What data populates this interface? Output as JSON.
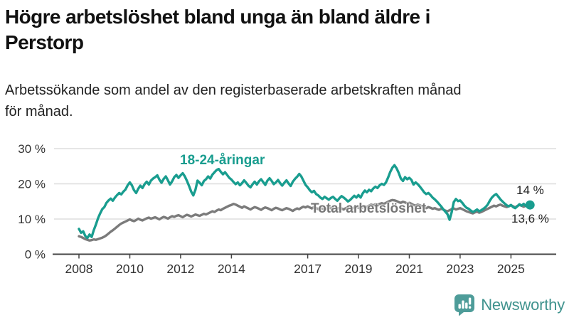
{
  "title": "Högre arbetslöshet bland unga än bland äldre i Perstorp",
  "title_lines": [
    "Högre arbetslöshet bland unga än bland äldre i",
    "Perstorp"
  ],
  "subtitle": "Arbetssökande som andel av den registerbaserade arbetskraften månad för månad.",
  "subtitle_lines": [
    "Arbetssökande som andel av den registerbaserade arbetskraften månad",
    "för månad."
  ],
  "branding": {
    "logo_text": "Newsworthy",
    "logo_color": "#4e9c99",
    "logo_text_color": "#40938e"
  },
  "colors": {
    "young_line": "#199d8f",
    "total_line": "#7b7b7b",
    "grid": "#dedede",
    "axis": "#444444",
    "tick_text": "#333333",
    "background": "#ffffff"
  },
  "chart_data": {
    "type": "line",
    "unit": "%",
    "x_start_year": 2008,
    "x_end_label_note": "monthly data Jan 2008 - Oct 2025",
    "ylim": [
      0,
      32
    ],
    "grid": "horizontal",
    "y_ticks": [
      {
        "value": 0,
        "label": "0 %"
      },
      {
        "value": 10,
        "label": "10 %"
      },
      {
        "value": 20,
        "label": "20 %"
      },
      {
        "value": 30,
        "label": "30 %"
      }
    ],
    "x_ticks": [
      {
        "year": 2008,
        "label": "2008"
      },
      {
        "year": 2010,
        "label": "2010"
      },
      {
        "year": 2012,
        "label": "2012"
      },
      {
        "year": 2014,
        "label": "2014"
      },
      {
        "year": 2017,
        "label": "2017"
      },
      {
        "year": 2019,
        "label": "2019"
      },
      {
        "year": 2021,
        "label": "2021"
      },
      {
        "year": 2023,
        "label": "2023"
      },
      {
        "year": 2025,
        "label": "2025"
      }
    ],
    "series": [
      {
        "name": "18-24-åringar",
        "color": "#199d8f",
        "end_label": "14 %",
        "end_value": 14.0,
        "values": [
          7.2,
          6.1,
          6.5,
          5.2,
          4.6,
          5.6,
          4.9,
          6.8,
          8.4,
          10.2,
          11.6,
          12.8,
          13.4,
          14.6,
          15.3,
          15.8,
          15.2,
          16.1,
          16.8,
          17.4,
          17.0,
          17.8,
          18.4,
          19.6,
          20.4,
          19.6,
          18.2,
          17.4,
          18.6,
          19.5,
          18.8,
          19.9,
          20.6,
          19.8,
          20.9,
          21.5,
          21.9,
          22.4,
          21.2,
          20.3,
          21.4,
          22.1,
          21.0,
          19.8,
          20.7,
          21.9,
          22.5,
          21.7,
          22.4,
          23.0,
          22.1,
          20.8,
          19.4,
          17.8,
          16.7,
          18.3,
          20.9,
          20.3,
          19.6,
          20.8,
          21.3,
          22.1,
          21.5,
          22.6,
          23.3,
          23.9,
          24.2,
          23.4,
          22.7,
          23.3,
          22.5,
          21.7,
          21.2,
          20.5,
          19.9,
          20.4,
          19.6,
          20.2,
          21.0,
          20.3,
          19.5,
          19.0,
          19.9,
          20.6,
          19.8,
          20.7,
          21.3,
          20.5,
          19.7,
          20.9,
          21.6,
          20.8,
          19.9,
          20.4,
          21.1,
          20.2,
          19.5,
          20.3,
          21.0,
          20.1,
          19.4,
          20.6,
          21.4,
          22.0,
          22.8,
          22.1,
          20.9,
          19.7,
          19.0,
          18.2,
          17.6,
          18.0,
          17.1,
          16.7,
          16.1,
          15.7,
          16.3,
          15.9,
          15.5,
          16.0,
          16.3,
          15.7,
          15.2,
          15.9,
          16.5,
          16.1,
          15.6,
          15.0,
          15.4,
          16.0,
          16.6,
          16.1,
          16.8,
          16.1,
          17.3,
          18.1,
          17.6,
          18.3,
          17.9,
          18.7,
          19.2,
          18.8,
          19.6,
          20.0,
          19.7,
          20.4,
          21.8,
          23.4,
          24.6,
          25.3,
          24.4,
          23.1,
          21.5,
          20.8,
          21.9,
          21.3,
          21.7,
          21.1,
          19.8,
          20.4,
          19.9,
          19.2,
          18.4,
          17.6,
          17.1,
          17.4,
          16.8,
          16.1,
          15.6,
          15.0,
          14.3,
          13.6,
          12.8,
          12.1,
          11.4,
          9.8,
          11.9,
          14.8,
          15.7,
          15.1,
          15.3,
          14.6,
          13.8,
          13.2,
          12.9,
          12.4,
          12.0,
          12.3,
          12.7,
          12.2,
          12.5,
          12.9,
          13.4,
          14.1,
          15.2,
          16.1,
          16.7,
          17.1,
          16.4,
          15.6,
          15.0,
          14.4,
          13.9,
          13.6,
          14.0,
          13.4,
          13.1,
          13.6,
          14.2,
          13.8,
          14.3,
          13.7,
          13.9,
          14.0
        ]
      },
      {
        "name": "Total arbetslöshet",
        "color": "#7b7b7b",
        "end_label": "13,6 %",
        "end_value": 13.6,
        "values": [
          5.1,
          4.9,
          4.6,
          4.3,
          4.1,
          3.9,
          4.0,
          4.2,
          4.1,
          4.3,
          4.5,
          4.7,
          5.0,
          5.4,
          5.9,
          6.4,
          6.8,
          7.3,
          7.8,
          8.3,
          8.7,
          9.0,
          9.3,
          9.6,
          9.9,
          9.6,
          9.4,
          9.7,
          10.1,
          9.8,
          9.6,
          9.9,
          10.2,
          10.4,
          10.1,
          10.3,
          10.5,
          10.2,
          9.9,
          10.3,
          10.6,
          10.4,
          10.1,
          10.5,
          10.8,
          10.6,
          10.9,
          11.1,
          10.8,
          10.5,
          10.9,
          11.2,
          11.0,
          10.7,
          11.0,
          11.3,
          11.1,
          10.9,
          11.2,
          11.5,
          11.3,
          11.6,
          11.9,
          12.2,
          12.0,
          12.4,
          12.7,
          12.5,
          12.9,
          13.2,
          13.5,
          13.8,
          14.0,
          14.3,
          14.1,
          13.8,
          13.5,
          13.2,
          13.6,
          13.3,
          13.0,
          12.7,
          13.1,
          13.4,
          13.2,
          12.9,
          12.6,
          13.0,
          13.3,
          13.1,
          12.8,
          12.5,
          12.9,
          13.2,
          13.0,
          12.7,
          12.5,
          12.8,
          13.1,
          12.9,
          12.6,
          12.3,
          12.7,
          13.0,
          12.8,
          13.2,
          13.5,
          13.3,
          13.6,
          13.3,
          13.0,
          13.4,
          13.1,
          12.8,
          13.2,
          12.9,
          12.6,
          13.0,
          13.3,
          13.1,
          12.8,
          12.5,
          12.9,
          13.2,
          13.0,
          12.7,
          13.1,
          13.4,
          13.2,
          12.9,
          13.3,
          13.5,
          13.2,
          12.9,
          13.3,
          13.6,
          13.4,
          13.8,
          14.1,
          13.9,
          14.2,
          14.0,
          14.3,
          14.5,
          14.3,
          14.6,
          14.9,
          15.2,
          15.4,
          15.3,
          15.1,
          14.8,
          14.6,
          14.9,
          14.7,
          14.4,
          14.6,
          14.3,
          14.0,
          13.8,
          14.1,
          13.9,
          13.6,
          13.3,
          13.1,
          13.4,
          13.2,
          12.9,
          13.1,
          12.8,
          12.6,
          12.9,
          12.7,
          12.4,
          12.2,
          12.5,
          12.8,
          13.0,
          12.7,
          12.9,
          13.1,
          12.8,
          12.5,
          12.2,
          12.0,
          11.8,
          11.6,
          11.9,
          12.1,
          11.8,
          12.0,
          12.3,
          12.6,
          12.9,
          13.2,
          13.5,
          13.8,
          13.6,
          13.9,
          14.1,
          13.8,
          13.6,
          13.4,
          13.7,
          13.9,
          13.6,
          13.3,
          13.7,
          14.0,
          13.8,
          13.5,
          13.8,
          13.7,
          13.6
        ]
      }
    ],
    "legend_position": "inline-labels",
    "annotations": [
      "14 %",
      "13,6 %"
    ]
  }
}
